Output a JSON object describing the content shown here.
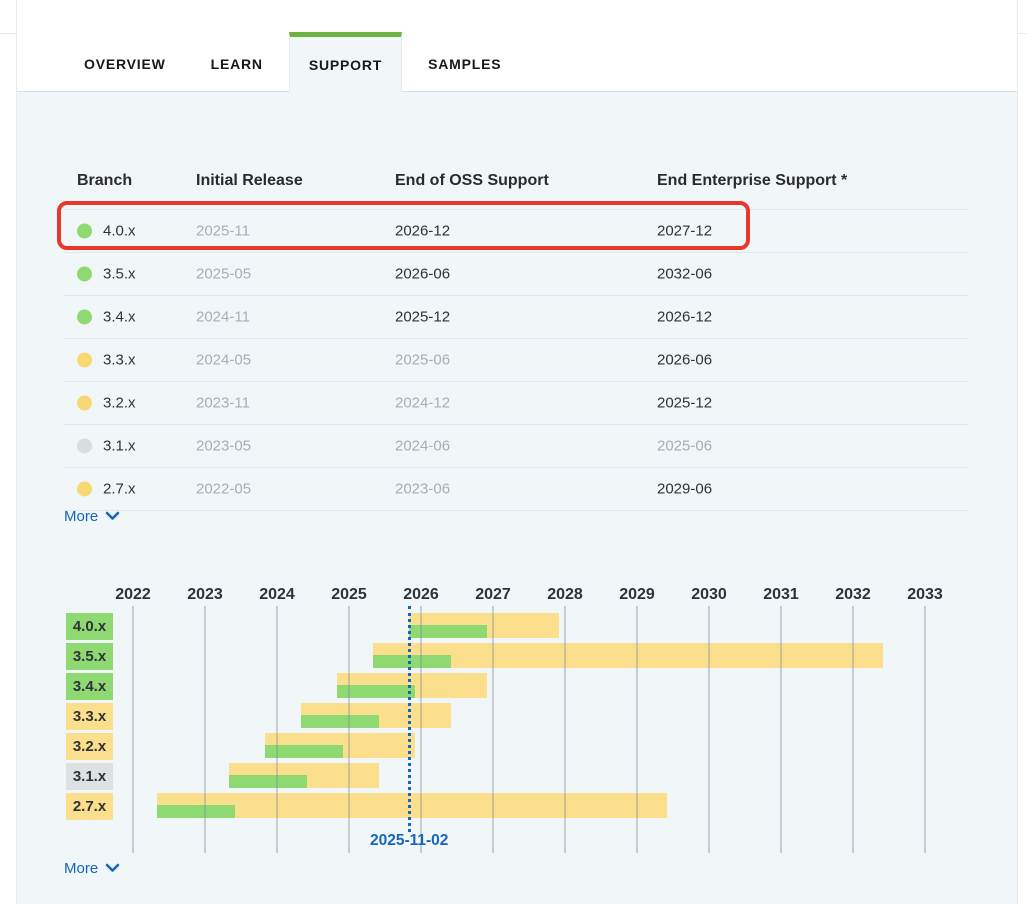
{
  "tabs": [
    {
      "label": "OVERVIEW",
      "active": false
    },
    {
      "label": "LEARN",
      "active": false
    },
    {
      "label": "SUPPORT",
      "active": true
    },
    {
      "label": "SAMPLES",
      "active": false
    }
  ],
  "support_table": {
    "columns": [
      "Branch",
      "Initial Release",
      "End of OSS Support",
      "End Enterprise Support *"
    ],
    "rows": [
      {
        "branch": "4.0.x",
        "status": "green",
        "initial": "2025-11",
        "initial_muted": true,
        "oss": "2026-12",
        "oss_muted": false,
        "ent": "2027-12",
        "ent_muted": false,
        "highlighted": true
      },
      {
        "branch": "3.5.x",
        "status": "green",
        "initial": "2025-05",
        "initial_muted": true,
        "oss": "2026-06",
        "oss_muted": false,
        "ent": "2032-06",
        "ent_muted": false,
        "highlighted": false
      },
      {
        "branch": "3.4.x",
        "status": "green",
        "initial": "2024-11",
        "initial_muted": true,
        "oss": "2025-12",
        "oss_muted": false,
        "ent": "2026-12",
        "ent_muted": false,
        "highlighted": false
      },
      {
        "branch": "3.3.x",
        "status": "yellow",
        "initial": "2024-05",
        "initial_muted": true,
        "oss": "2025-06",
        "oss_muted": true,
        "ent": "2026-06",
        "ent_muted": false,
        "highlighted": false
      },
      {
        "branch": "3.2.x",
        "status": "yellow",
        "initial": "2023-11",
        "initial_muted": true,
        "oss": "2024-12",
        "oss_muted": true,
        "ent": "2025-12",
        "ent_muted": false,
        "highlighted": false
      },
      {
        "branch": "3.1.x",
        "status": "gray",
        "initial": "2023-05",
        "initial_muted": true,
        "oss": "2024-06",
        "oss_muted": true,
        "ent": "2025-06",
        "ent_muted": true,
        "highlighted": false
      },
      {
        "branch": "2.7.x",
        "status": "yellow",
        "initial": "2022-05",
        "initial_muted": true,
        "oss": "2023-06",
        "oss_muted": true,
        "ent": "2029-06",
        "ent_muted": false,
        "highlighted": false
      }
    ],
    "more_label": "More"
  },
  "chart_data": {
    "type": "gantt",
    "x_axis": {
      "unit": "year",
      "start": 2022,
      "end": 2033,
      "ticks": [
        2022,
        2023,
        2024,
        2025,
        2026,
        2027,
        2028,
        2029,
        2030,
        2031,
        2032,
        2033
      ]
    },
    "current_date": "2025-11-02",
    "rows": [
      {
        "branch": "4.0.x",
        "status": "green",
        "initial_release": "2025-11",
        "oss_support_end": "2026-12",
        "enterprise_support_end": "2027-12"
      },
      {
        "branch": "3.5.x",
        "status": "green",
        "initial_release": "2025-05",
        "oss_support_end": "2026-06",
        "enterprise_support_end": "2032-06"
      },
      {
        "branch": "3.4.x",
        "status": "green",
        "initial_release": "2024-11",
        "oss_support_end": "2025-12",
        "enterprise_support_end": "2026-12"
      },
      {
        "branch": "3.3.x",
        "status": "yellow",
        "initial_release": "2024-05",
        "oss_support_end": "2025-06",
        "enterprise_support_end": "2026-06"
      },
      {
        "branch": "3.2.x",
        "status": "yellow",
        "initial_release": "2023-11",
        "oss_support_end": "2024-12",
        "enterprise_support_end": "2025-12"
      },
      {
        "branch": "3.1.x",
        "status": "gray",
        "initial_release": "2023-05",
        "oss_support_end": "2024-06",
        "enterprise_support_end": "2025-06"
      },
      {
        "branch": "2.7.x",
        "status": "yellow",
        "initial_release": "2022-05",
        "oss_support_end": "2023-06",
        "enterprise_support_end": "2029-06"
      }
    ],
    "more_label": "More"
  },
  "annotation": {
    "type": "red-highlight-box",
    "target_row": "4.0.x"
  },
  "colors": {
    "accent_green": "#6db33f",
    "bar_oss_green": "#8fd973",
    "bar_enterprise_yellow": "#fbdf8d",
    "chip_gray": "#dce2e2",
    "link_blue": "#1565c0",
    "annotation_red": "#e9372b",
    "content_background": "#f1f6f8",
    "muted_text": "#a9aeb3"
  }
}
